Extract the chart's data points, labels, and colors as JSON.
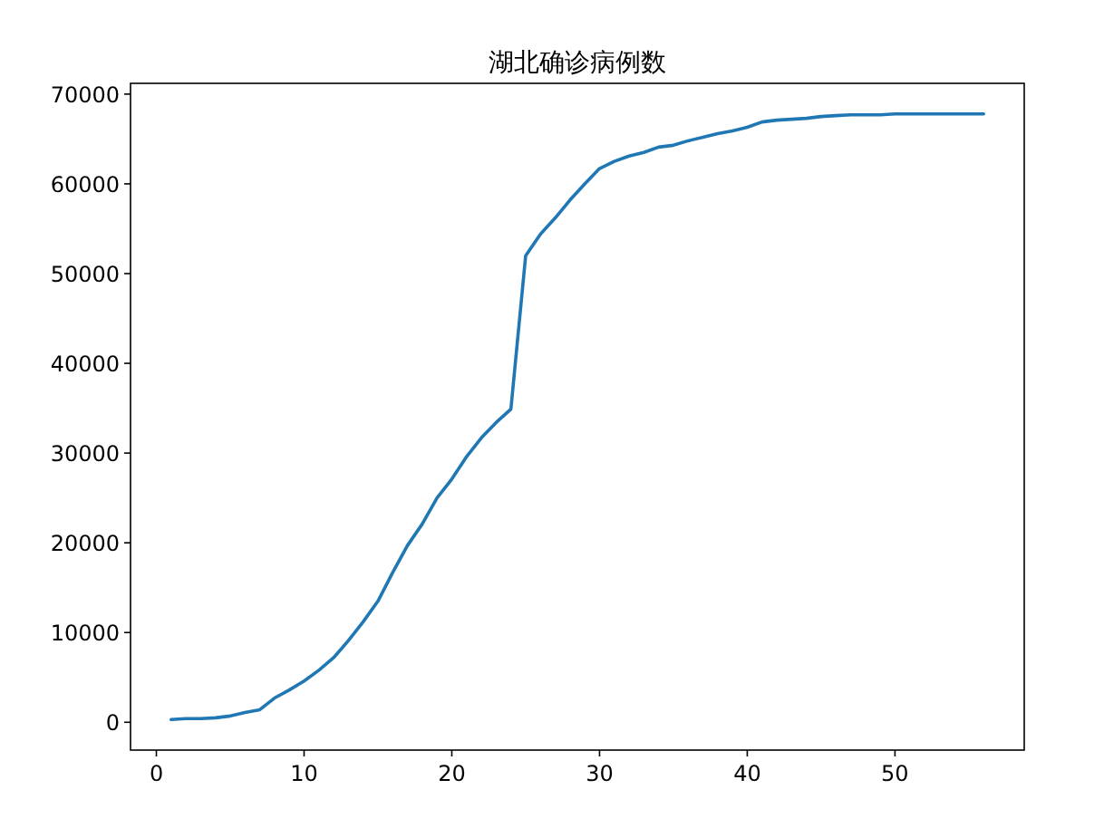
{
  "chart_data": {
    "type": "line",
    "title": "湖北确诊病例数",
    "x": [
      1,
      2,
      3,
      4,
      5,
      6,
      7,
      8,
      9,
      10,
      11,
      12,
      13,
      14,
      15,
      16,
      17,
      18,
      19,
      20,
      21,
      22,
      23,
      24,
      25,
      26,
      27,
      28,
      29,
      30,
      31,
      32,
      33,
      34,
      35,
      36,
      37,
      38,
      39,
      40,
      41,
      42,
      43,
      44,
      45,
      46,
      47,
      48,
      49,
      50,
      51,
      52,
      53,
      54,
      55,
      56
    ],
    "series": [
      {
        "color": "#1f77b4",
        "values": [
          300,
          400,
          400,
          500,
          700,
          1100,
          1400,
          2700,
          3600,
          4600,
          5800,
          7200,
          9100,
          11200,
          13500,
          16700,
          19700,
          22100,
          25000,
          27100,
          29600,
          31700,
          33400,
          34900,
          52000,
          54400,
          56200,
          58200,
          60000,
          61700,
          62500,
          63100,
          63500,
          64100,
          64300,
          64800,
          65200,
          65600,
          65900,
          66300,
          66900,
          67100,
          67200,
          67300,
          67500,
          67600,
          67700,
          67700,
          67700,
          67800,
          67800,
          67800,
          67800,
          67800,
          67800,
          67800
        ]
      }
    ],
    "xlim": [
      -1.75,
      58.75
    ],
    "ylim": [
      -3100,
      71200
    ],
    "xticks": [
      0,
      10,
      20,
      30,
      40,
      50
    ],
    "yticks": [
      0,
      10000,
      20000,
      30000,
      40000,
      50000,
      60000,
      70000
    ],
    "grid": false,
    "marker": "none",
    "line_style": "solid"
  }
}
